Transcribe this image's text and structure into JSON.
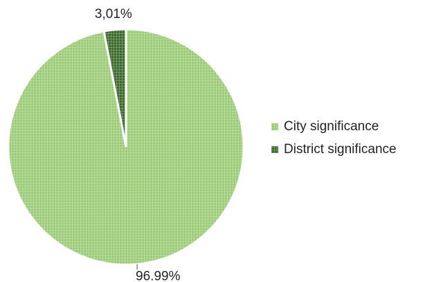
{
  "chart_data": {
    "type": "pie",
    "categories": [
      "City significance",
      "District significance"
    ],
    "values": [
      96.99,
      3.01
    ],
    "value_labels": [
      "96.99%",
      "3,01%"
    ],
    "colors": [
      "#9ccb78",
      "#3d6a2c"
    ],
    "legend": "right"
  }
}
